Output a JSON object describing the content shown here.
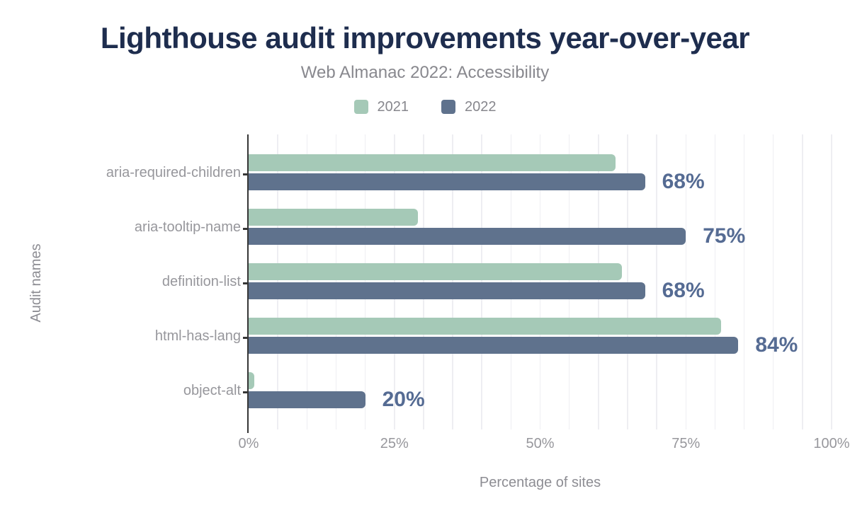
{
  "chart_data": {
    "type": "bar",
    "orientation": "horizontal",
    "title": "Lighthouse audit improvements year-over-year",
    "subtitle": "Web Almanac 2022: Accessibility",
    "xlabel": "Percentage of sites",
    "ylabel": "Audit names",
    "categories": [
      "aria-required-children",
      "aria-tooltip-name",
      "definition-list",
      "html-has-lang",
      "object-alt"
    ],
    "series": [
      {
        "name": "2021",
        "color": "#a5c9b7",
        "values": [
          63,
          29,
          64,
          81,
          1
        ]
      },
      {
        "name": "2022",
        "color": "#5f728d",
        "values": [
          68,
          75,
          68,
          84,
          20
        ]
      }
    ],
    "value_labels": [
      "68%",
      "75%",
      "68%",
      "84%",
      "20%"
    ],
    "value_labels_for_series": "2022",
    "x_ticks": [
      {
        "value": 0,
        "label": "0%"
      },
      {
        "value": 25,
        "label": "25%"
      },
      {
        "value": 50,
        "label": "50%"
      },
      {
        "value": 75,
        "label": "75%"
      },
      {
        "value": 100,
        "label": "100%"
      }
    ],
    "xlim": [
      0,
      100
    ],
    "grid": {
      "vertical_step": 5,
      "on": true
    },
    "legend_position": "top",
    "colors": {
      "title": "#1e2d4e",
      "subtitle": "#88888e",
      "tick_label": "#97979c",
      "axis_title": "#8d8d93",
      "value_label": "#556b93",
      "axis_line": "#363636",
      "gridline": "#eeeef2",
      "background": "#ffffff"
    }
  }
}
